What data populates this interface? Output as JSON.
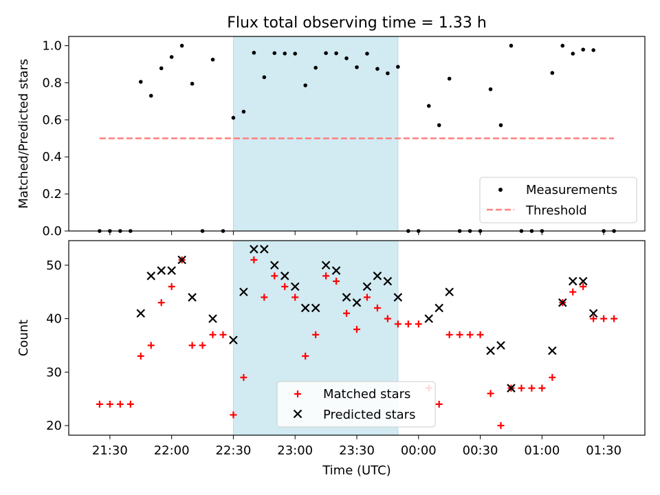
{
  "title": "Flux total observing time = 1.33 h",
  "colors": {
    "measurement": "#000000",
    "threshold": "#ff8080",
    "matched": "#ff0000",
    "predicted": "#000000",
    "shade": "#add8e6"
  },
  "chart_data": [
    {
      "type": "scatter",
      "panel": "top",
      "ylabel": "Matched/Predicted stars",
      "ylim": [
        0,
        1.05
      ],
      "yticks": [
        0.0,
        0.2,
        0.4,
        0.6,
        0.8,
        1.0
      ],
      "ytick_labels": [
        "0.0",
        "0.2",
        "0.4",
        "0.6",
        "0.8",
        "1.0"
      ],
      "legend_position": "lower-right",
      "shaded_x_range": [
        "22:30",
        "23:50"
      ],
      "series": [
        {
          "name": "Measurements",
          "marker": "dot",
          "points": [
            [
              "21:25",
              0.0
            ],
            [
              "21:30",
              0.0
            ],
            [
              "21:35",
              0.0
            ],
            [
              "21:40",
              0.0
            ],
            [
              "21:45",
              0.805
            ],
            [
              "21:50",
              0.73
            ],
            [
              "21:55",
              0.878
            ],
            [
              "22:00",
              0.939
            ],
            [
              "22:05",
              1.0
            ],
            [
              "22:10",
              0.795
            ],
            [
              "22:15",
              0.0
            ],
            [
              "22:20",
              0.925
            ],
            [
              "22:25",
              0.0
            ],
            [
              "22:30",
              0.611
            ],
            [
              "22:35",
              0.644
            ],
            [
              "22:40",
              0.962
            ],
            [
              "22:45",
              0.83
            ],
            [
              "22:50",
              0.96
            ],
            [
              "22:55",
              0.958
            ],
            [
              "23:00",
              0.957
            ],
            [
              "23:05",
              0.786
            ],
            [
              "23:10",
              0.881
            ],
            [
              "23:15",
              0.96
            ],
            [
              "23:20",
              0.959
            ],
            [
              "23:25",
              0.932
            ],
            [
              "23:30",
              0.884
            ],
            [
              "23:35",
              0.957
            ],
            [
              "23:40",
              0.875
            ],
            [
              "23:45",
              0.851
            ],
            [
              "23:50",
              0.886
            ],
            [
              "23:55",
              0.0
            ],
            [
              "00:00",
              0.0
            ],
            [
              "00:05",
              0.675
            ],
            [
              "00:10",
              0.571
            ],
            [
              "00:15",
              0.822
            ],
            [
              "00:20",
              0.0
            ],
            [
              "00:25",
              0.0
            ],
            [
              "00:30",
              0.0
            ],
            [
              "00:35",
              0.765
            ],
            [
              "00:40",
              0.571
            ],
            [
              "00:45",
              1.0
            ],
            [
              "00:50",
              0.0
            ],
            [
              "00:55",
              0.0
            ],
            [
              "01:00",
              0.0
            ],
            [
              "01:05",
              0.853
            ],
            [
              "01:10",
              1.0
            ],
            [
              "01:15",
              0.957
            ],
            [
              "01:20",
              0.979
            ],
            [
              "01:25",
              0.976
            ],
            [
              "01:30",
              0.0
            ],
            [
              "01:35",
              0.0
            ]
          ]
        },
        {
          "name": "Threshold",
          "marker": "dashed-line",
          "points": [
            [
              "21:25",
              0.5
            ],
            [
              "01:35",
              0.5
            ]
          ]
        }
      ]
    },
    {
      "type": "scatter",
      "panel": "bottom",
      "xlabel": "Time (UTC)",
      "ylabel": "Count",
      "ylim": [
        18.2,
        54.6
      ],
      "yticks": [
        20,
        30,
        40,
        50
      ],
      "ytick_labels": [
        "20",
        "30",
        "40",
        "50"
      ],
      "xticks": [
        "21:30",
        "22:00",
        "22:30",
        "23:00",
        "23:30",
        "00:00",
        "00:30",
        "01:00",
        "01:30"
      ],
      "xlim": [
        "21:10",
        "01:50"
      ],
      "legend_position": "lower-center",
      "shaded_x_range": [
        "22:30",
        "23:50"
      ],
      "series": [
        {
          "name": "Matched stars",
          "marker": "plus",
          "points": [
            [
              "21:25",
              24
            ],
            [
              "21:30",
              24
            ],
            [
              "21:35",
              24
            ],
            [
              "21:40",
              24
            ],
            [
              "21:45",
              33
            ],
            [
              "21:50",
              35
            ],
            [
              "21:55",
              43
            ],
            [
              "22:00",
              46
            ],
            [
              "22:05",
              51
            ],
            [
              "22:10",
              35
            ],
            [
              "22:15",
              35
            ],
            [
              "22:20",
              37
            ],
            [
              "22:25",
              37
            ],
            [
              "22:30",
              22
            ],
            [
              "22:35",
              29
            ],
            [
              "22:40",
              51
            ],
            [
              "22:45",
              44
            ],
            [
              "22:50",
              48
            ],
            [
              "22:55",
              46
            ],
            [
              "23:00",
              44
            ],
            [
              "23:05",
              33
            ],
            [
              "23:10",
              37
            ],
            [
              "23:15",
              48
            ],
            [
              "23:20",
              47
            ],
            [
              "23:25",
              41
            ],
            [
              "23:30",
              38
            ],
            [
              "23:35",
              44
            ],
            [
              "23:40",
              42
            ],
            [
              "23:45",
              40
            ],
            [
              "23:50",
              39
            ],
            [
              "23:55",
              39
            ],
            [
              "00:00",
              39
            ],
            [
              "00:05",
              27
            ],
            [
              "00:10",
              24
            ],
            [
              "00:15",
              37
            ],
            [
              "00:20",
              37
            ],
            [
              "00:25",
              37
            ],
            [
              "00:30",
              37
            ],
            [
              "00:35",
              26
            ],
            [
              "00:40",
              20
            ],
            [
              "00:45",
              27
            ],
            [
              "00:50",
              27
            ],
            [
              "00:55",
              27
            ],
            [
              "01:00",
              27
            ],
            [
              "01:05",
              29
            ],
            [
              "01:10",
              43
            ],
            [
              "01:15",
              45
            ],
            [
              "01:20",
              46
            ],
            [
              "01:25",
              40
            ],
            [
              "01:30",
              40
            ],
            [
              "01:35",
              40
            ]
          ]
        },
        {
          "name": "Predicted stars",
          "marker": "x",
          "points": [
            [
              "21:45",
              41
            ],
            [
              "21:50",
              48
            ],
            [
              "21:55",
              49
            ],
            [
              "22:00",
              49
            ],
            [
              "22:05",
              51
            ],
            [
              "22:10",
              44
            ],
            [
              "22:20",
              40
            ],
            [
              "22:30",
              36
            ],
            [
              "22:35",
              45
            ],
            [
              "22:40",
              53
            ],
            [
              "22:45",
              53
            ],
            [
              "22:50",
              50
            ],
            [
              "22:55",
              48
            ],
            [
              "23:00",
              46
            ],
            [
              "23:05",
              42
            ],
            [
              "23:10",
              42
            ],
            [
              "23:15",
              50
            ],
            [
              "23:20",
              49
            ],
            [
              "23:25",
              44
            ],
            [
              "23:30",
              43
            ],
            [
              "23:35",
              46
            ],
            [
              "23:40",
              48
            ],
            [
              "23:45",
              47
            ],
            [
              "23:50",
              44
            ],
            [
              "00:05",
              40
            ],
            [
              "00:10",
              42
            ],
            [
              "00:15",
              45
            ],
            [
              "00:35",
              34
            ],
            [
              "00:40",
              35
            ],
            [
              "00:45",
              27
            ],
            [
              "01:05",
              34
            ],
            [
              "01:10",
              43
            ],
            [
              "01:15",
              47
            ],
            [
              "01:20",
              47
            ],
            [
              "01:25",
              41
            ]
          ]
        }
      ]
    }
  ]
}
